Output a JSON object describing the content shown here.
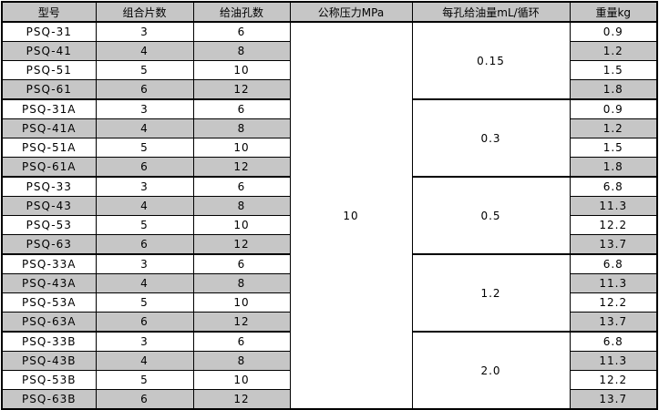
{
  "table": {
    "columns": [
      {
        "label": "型号"
      },
      {
        "label": "组合片数"
      },
      {
        "label": "给油孔数"
      },
      {
        "label": "公称压力MPa"
      },
      {
        "label": "每孔给油量mL/循环"
      },
      {
        "label": "重量kg"
      }
    ],
    "nominal_pressure_mpa": "10",
    "groups": [
      {
        "oil_per_hole_ml": "0.15",
        "rows": [
          {
            "model": "PSQ-31",
            "plates": "3",
            "holes": "6",
            "weight": "0.9"
          },
          {
            "model": "PSQ-41",
            "plates": "4",
            "holes": "8",
            "weight": "1.2"
          },
          {
            "model": "PSQ-51",
            "plates": "5",
            "holes": "10",
            "weight": "1.5"
          },
          {
            "model": "PSQ-61",
            "plates": "6",
            "holes": "12",
            "weight": "1.8"
          }
        ]
      },
      {
        "oil_per_hole_ml": "0.3",
        "rows": [
          {
            "model": "PSQ-31A",
            "plates": "3",
            "holes": "6",
            "weight": "0.9"
          },
          {
            "model": "PSQ-41A",
            "plates": "4",
            "holes": "8",
            "weight": "1.2"
          },
          {
            "model": "PSQ-51A",
            "plates": "5",
            "holes": "10",
            "weight": "1.5"
          },
          {
            "model": "PSQ-61A",
            "plates": "6",
            "holes": "12",
            "weight": "1.8"
          }
        ]
      },
      {
        "oil_per_hole_ml": "0.5",
        "rows": [
          {
            "model": "PSQ-33",
            "plates": "3",
            "holes": "6",
            "weight": "6.8"
          },
          {
            "model": "PSQ-43",
            "plates": "4",
            "holes": "8",
            "weight": "11.3"
          },
          {
            "model": "PSQ-53",
            "plates": "5",
            "holes": "10",
            "weight": "12.2"
          },
          {
            "model": "PSQ-63",
            "plates": "6",
            "holes": "12",
            "weight": "13.7"
          }
        ]
      },
      {
        "oil_per_hole_ml": "1.2",
        "rows": [
          {
            "model": "PSQ-33A",
            "plates": "3",
            "holes": "6",
            "weight": "6.8"
          },
          {
            "model": "PSQ-43A",
            "plates": "4",
            "holes": "8",
            "weight": "11.3"
          },
          {
            "model": "PSQ-53A",
            "plates": "5",
            "holes": "10",
            "weight": "12.2"
          },
          {
            "model": "PSQ-63A",
            "plates": "6",
            "holes": "12",
            "weight": "13.7"
          }
        ]
      },
      {
        "oil_per_hole_ml": "2.0",
        "rows": [
          {
            "model": "PSQ-33B",
            "plates": "3",
            "holes": "6",
            "weight": "6.8"
          },
          {
            "model": "PSQ-43B",
            "plates": "4",
            "holes": "8",
            "weight": "11.3"
          },
          {
            "model": "PSQ-53B",
            "plates": "5",
            "holes": "10",
            "weight": "12.2"
          },
          {
            "model": "PSQ-63B",
            "plates": "6",
            "holes": "12",
            "weight": "13.7"
          }
        ]
      }
    ],
    "colors": {
      "shade": "#c6c6c6",
      "border": "#000000",
      "background": "#ffffff"
    }
  }
}
